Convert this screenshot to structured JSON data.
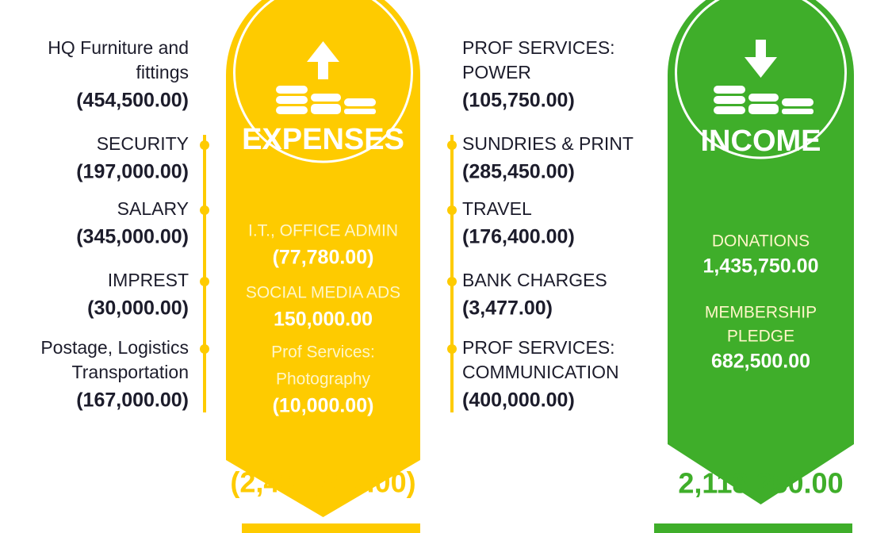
{
  "expenses": {
    "title": "EXPENSES",
    "left_items": [
      {
        "lines": [
          "HQ Furniture and",
          "fittings"
        ],
        "amount": "(454,500.00)"
      },
      {
        "lines": [
          "SECURITY"
        ],
        "amount": "(197,000.00)"
      },
      {
        "lines": [
          "SALARY"
        ],
        "amount": "(345,000.00)"
      },
      {
        "lines": [
          "IMPREST"
        ],
        "amount": "(30,000.00)"
      },
      {
        "lines": [
          "Postage, Logistics",
          "Transportation"
        ],
        "amount": "(167,000.00)"
      }
    ],
    "center_items": [
      {
        "lines": [
          "I.T., OFFICE ADMIN"
        ],
        "amount": "(77,780.00)"
      },
      {
        "lines": [
          "SOCIAL MEDIA ADS"
        ],
        "amount": "150,000.00"
      },
      {
        "lines": [
          "Prof Services:",
          "Photography"
        ],
        "amount": "(10,000.00)"
      }
    ],
    "right_items": [
      {
        "lines": [
          "PROF SERVICES:",
          "POWER"
        ],
        "amount": "(105,750.00)"
      },
      {
        "lines": [
          "SUNDRIES & PRINT"
        ],
        "amount": "(285,450.00)"
      },
      {
        "lines": [
          "TRAVEL"
        ],
        "amount": "(176,400.00)"
      },
      {
        "lines": [
          "BANK CHARGES"
        ],
        "amount": "(3,477.00)"
      },
      {
        "lines": [
          "PROF SERVICES:",
          "COMMUNICATION"
        ],
        "amount": "(400,000.00)"
      }
    ],
    "total": "(2,402,357.00)"
  },
  "income": {
    "title": "INCOME",
    "items": [
      {
        "lines": [
          "DONATIONS"
        ],
        "amount": "1,435,750.00"
      },
      {
        "lines": [
          "MEMBERSHIP",
          "PLEDGE"
        ],
        "amount": "682,500.00"
      }
    ],
    "total": "2,118,250.00"
  }
}
